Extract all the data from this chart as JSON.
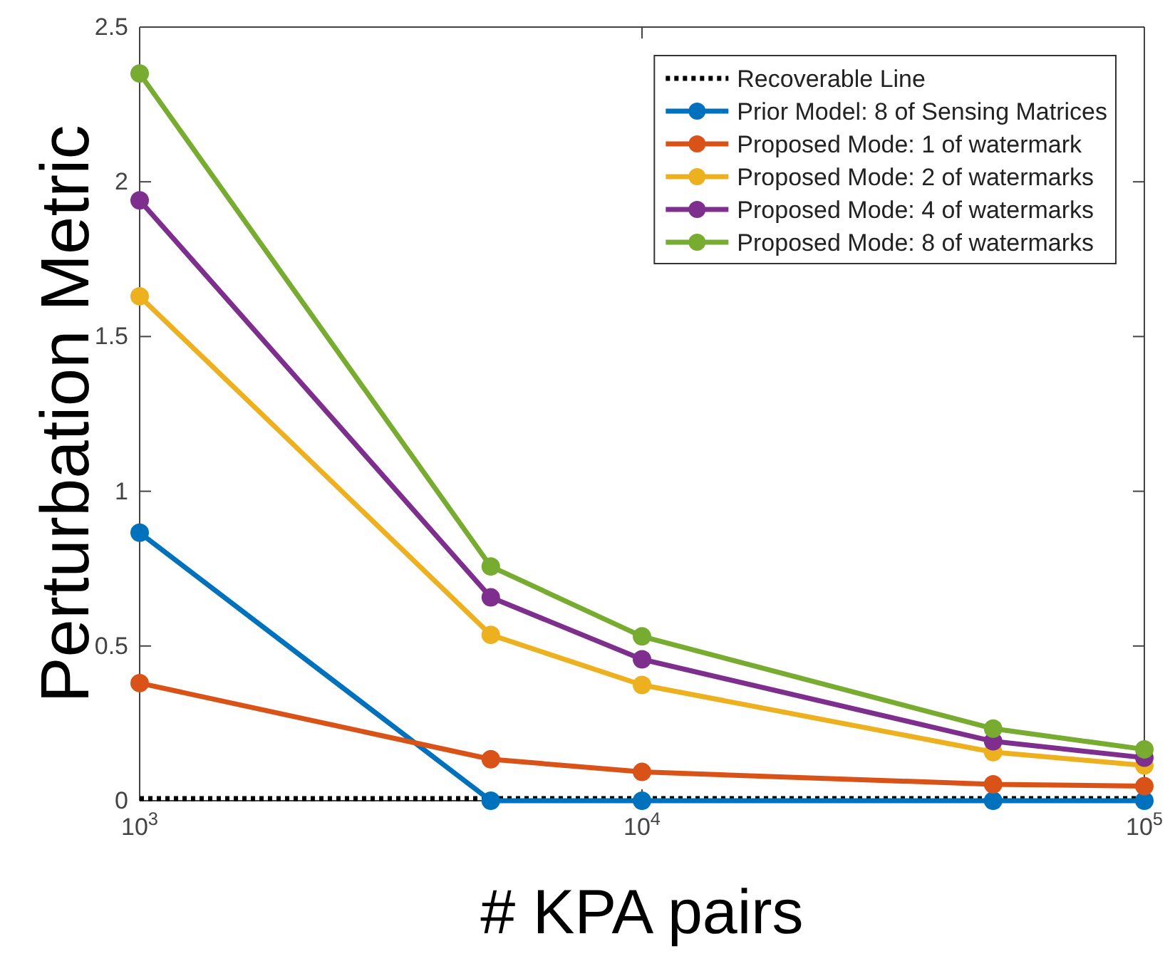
{
  "chart_data": {
    "type": "line",
    "xlabel": "# KPA pairs",
    "ylabel": "Perturbation Metric",
    "log": "x",
    "legend": "top right",
    "xlim": [
      1000,
      100000
    ],
    "xticks": [
      {
        "value": 1000,
        "label": "10$^{3}$"
      },
      {
        "value": 10000,
        "label": "10$^{4}$"
      },
      {
        "value": 100000,
        "label": "10$^{5}$"
      }
    ],
    "ylim": [
      0,
      2.5
    ],
    "yticks": [
      0,
      0.5,
      1,
      1.5,
      2,
      2.5
    ],
    "series": [
      {
        "name": "Recoverable Line",
        "color": "#000000",
        "x": [
          1000,
          100000
        ],
        "values": [
          0.007,
          0.007
        ],
        "line_style": "dotted",
        "marker": "none"
      },
      {
        "name": "Prior Model: 8 of Sensing Matrices",
        "color": "#0072bd",
        "x": [
          1000,
          5000,
          10000,
          50000,
          100000
        ],
        "values": [
          0.866,
          0,
          0,
          0,
          0
        ],
        "line_style": "solid",
        "marker": "circle"
      },
      {
        "name": "Proposed Mode: 1 of watermark",
        "color": "#d95319",
        "x": [
          1000,
          5000,
          10000,
          50000,
          100000
        ],
        "values": [
          0.38,
          0.134,
          0.093,
          0.053,
          0.047
        ],
        "line_style": "solid",
        "marker": "circle"
      },
      {
        "name": "Proposed Mode: 2 of watermarks",
        "color": "#edb120",
        "x": [
          1000,
          5000,
          10000,
          50000,
          100000
        ],
        "values": [
          1.63,
          0.536,
          0.374,
          0.157,
          0.114
        ],
        "line_style": "solid",
        "marker": "circle"
      },
      {
        "name": "Proposed Mode: 4 of watermarks",
        "color": "#7e2f8e",
        "x": [
          1000,
          5000,
          10000,
          50000,
          100000
        ],
        "values": [
          1.94,
          0.657,
          0.457,
          0.192,
          0.139
        ],
        "line_style": "solid",
        "marker": "circle"
      },
      {
        "name": "Proposed Mode: 8 of watermarks",
        "color": "#77ac30",
        "x": [
          1000,
          5000,
          10000,
          50000,
          100000
        ],
        "values": [
          2.35,
          0.757,
          0.531,
          0.233,
          0.166
        ],
        "line_style": "solid",
        "marker": "circle"
      }
    ]
  }
}
